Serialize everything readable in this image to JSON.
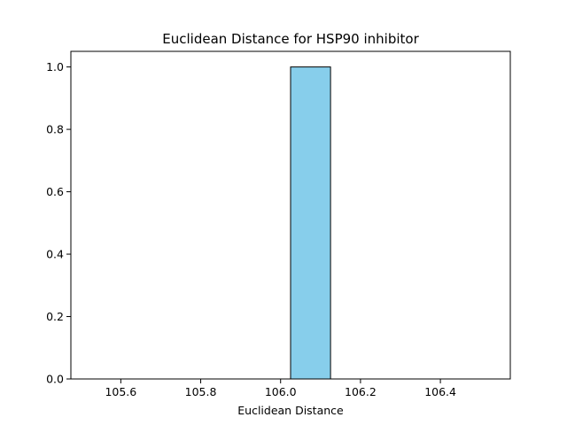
{
  "chart_data": {
    "type": "bar",
    "title": "Euclidean Distance for HSP90 inhibitor",
    "xlabel": "Euclidean Distance",
    "ylabel": "",
    "xlim": [
      105.475,
      106.575
    ],
    "ylim": [
      0,
      1.05
    ],
    "xticks": [
      105.6,
      105.8,
      106.0,
      106.2,
      106.4
    ],
    "xtick_labels": [
      "105.6",
      "105.8",
      "106.0",
      "106.2",
      "106.4"
    ],
    "yticks": [
      0,
      0.2,
      0.4,
      0.6,
      0.8,
      1.0
    ],
    "ytick_labels": [
      "0.0",
      "0.2",
      "0.4",
      "0.6",
      "0.8",
      "1.0"
    ],
    "bins": [
      {
        "start": 105.525,
        "end": 105.625,
        "value": 0
      },
      {
        "start": 105.625,
        "end": 105.725,
        "value": 0
      },
      {
        "start": 105.725,
        "end": 105.825,
        "value": 0
      },
      {
        "start": 105.825,
        "end": 105.925,
        "value": 0
      },
      {
        "start": 105.925,
        "end": 106.025,
        "value": 0
      },
      {
        "start": 106.025,
        "end": 106.125,
        "value": 1
      },
      {
        "start": 106.125,
        "end": 106.225,
        "value": 0
      },
      {
        "start": 106.225,
        "end": 106.325,
        "value": 0
      },
      {
        "start": 106.325,
        "end": 106.425,
        "value": 0
      },
      {
        "start": 106.425,
        "end": 106.525,
        "value": 0
      }
    ],
    "grid": false,
    "colors": {
      "bar_fill": "#87ceeb",
      "bar_edge": "#000000",
      "axes": "#000000",
      "background": "#ffffff"
    }
  }
}
